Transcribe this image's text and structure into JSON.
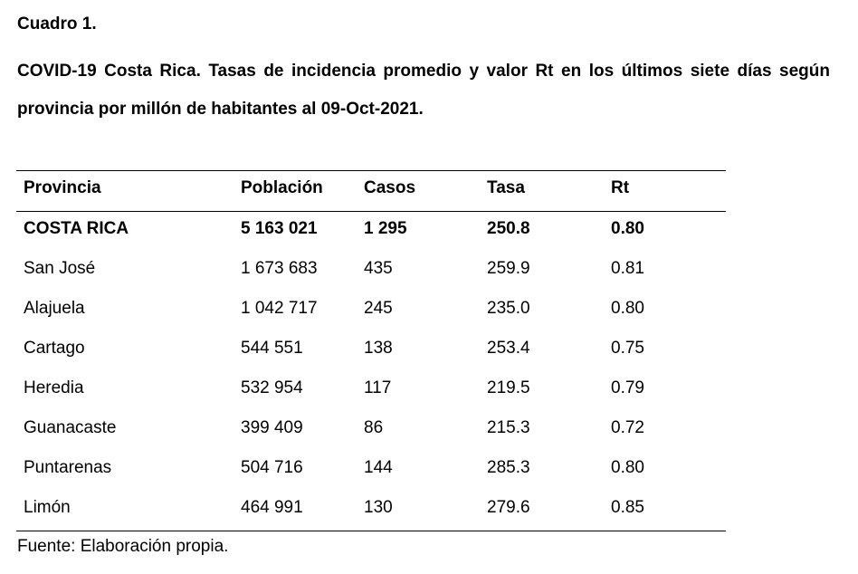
{
  "table_label": "Cuadro 1.",
  "title": "COVID-19 Costa Rica. Tasas de incidencia promedio y valor Rt en los últimos siete días según provincia por millón de habitantes al 09-Oct-2021.",
  "columns": [
    "Provincia",
    "Población",
    "Casos",
    "Tasa",
    "Rt"
  ],
  "total": [
    "COSTA RICA",
    "5 163 021",
    "1 295",
    "250.8",
    "0.80"
  ],
  "rows": [
    [
      "San José",
      "1 673 683",
      "435",
      "259.9",
      "0.81"
    ],
    [
      "Alajuela",
      "1 042 717",
      "245",
      "235.0",
      "0.80"
    ],
    [
      "Cartago",
      "544 551",
      "138",
      "253.4",
      "0.75"
    ],
    [
      "Heredia",
      "532 954",
      "117",
      "219.5",
      "0.79"
    ],
    [
      "Guanacaste",
      "399 409",
      "86",
      "215.3",
      "0.72"
    ],
    [
      "Puntarenas",
      "504 716",
      "144",
      "285.3",
      "0.80"
    ],
    [
      "Limón",
      "464 991",
      "130",
      "279.6",
      "0.85"
    ]
  ],
  "source": "Fuente: Elaboración propia."
}
